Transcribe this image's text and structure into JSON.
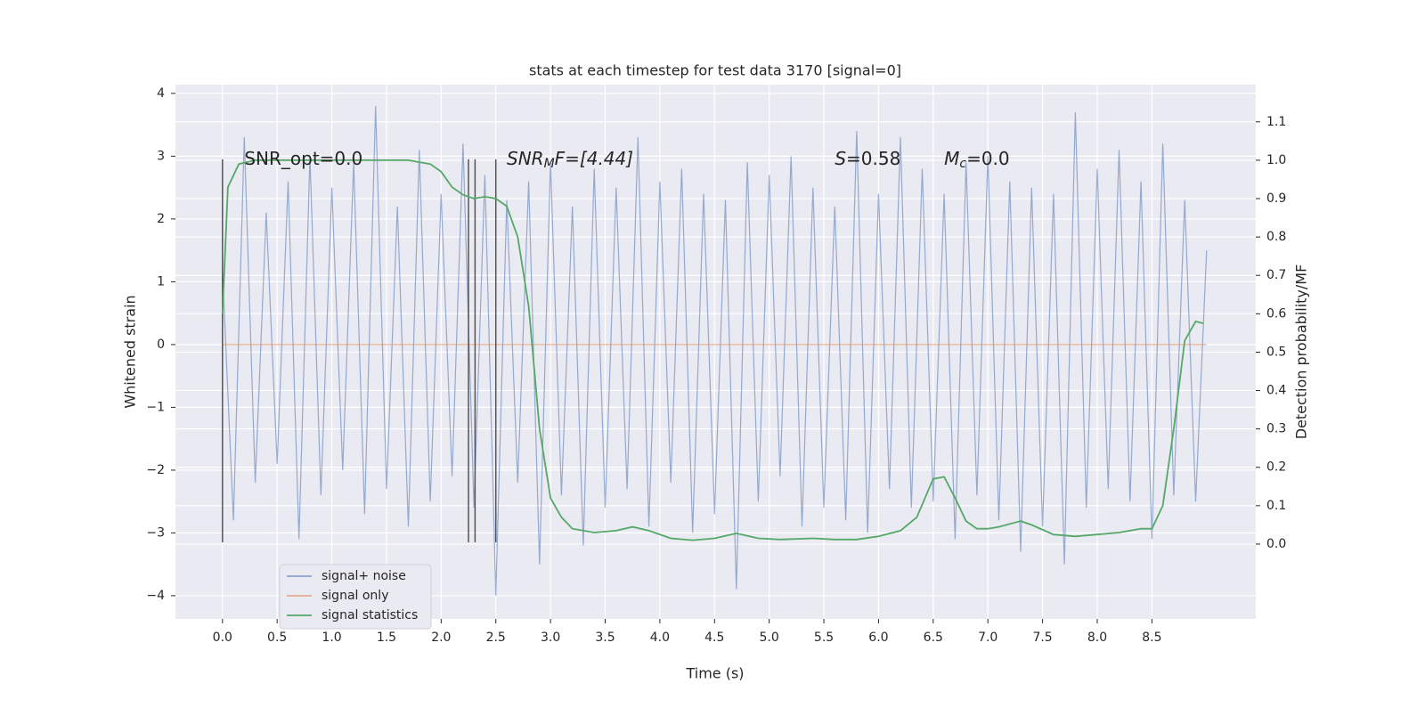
{
  "chart_data": {
    "type": "line",
    "title": "stats at each timestep for test data 3170 [signal=0]",
    "xlabel": "Time (s)",
    "ylabel": "Whitened strain",
    "y2label": "Detection probability/MF",
    "xlim": [
      -0.43,
      9.45
    ],
    "ylim": [
      -4.37,
      4.14
    ],
    "y2lim": [
      -0.195,
      1.197
    ],
    "xticks": [
      {
        "value": 0,
        "label": "0.0"
      },
      0.5,
      {
        "value": 1,
        "label": "1.0"
      },
      1.5,
      {
        "value": 2,
        "label": "2.0"
      },
      2.5,
      {
        "value": 3,
        "label": "3.0"
      },
      3.5,
      {
        "value": 4,
        "label": "4.0"
      },
      4.5,
      {
        "value": 5,
        "label": "5.0"
      },
      5.5,
      {
        "value": 6,
        "label": "6.0"
      },
      6.5,
      {
        "value": 7,
        "label": "7.0"
      },
      7.5,
      {
        "value": 8,
        "label": "8.0"
      },
      8.5
    ],
    "yticks": [
      {
        "value": -4,
        "label": "−4"
      },
      {
        "value": -3,
        "label": "−3"
      },
      {
        "value": -2,
        "label": "−2"
      },
      {
        "value": -1,
        "label": "−1"
      },
      0,
      1,
      2,
      3,
      4
    ],
    "y2ticks": [
      {
        "value": 0,
        "label": "0.0"
      },
      0.1,
      0.2,
      0.3,
      0.4,
      0.5,
      0.6,
      0.7,
      0.8,
      0.9,
      {
        "value": 1,
        "label": "1.0"
      },
      1.1
    ],
    "grid": true,
    "legend": "lower left",
    "series": [
      {
        "name": "signal+ noise",
        "color": "#4c72b0",
        "x": [
          0,
          0.1,
          0.2,
          0.3,
          0.4,
          0.5,
          0.6,
          0.7,
          0.8,
          0.9,
          1,
          1.1,
          1.2,
          1.3,
          1.4,
          1.5,
          1.6,
          1.7,
          1.8,
          1.9,
          2,
          2.1,
          2.2,
          2.3,
          2.4,
          2.5,
          2.6,
          2.7,
          2.8,
          2.9,
          3,
          3.1,
          3.2,
          3.3,
          3.4,
          3.5,
          3.6,
          3.7,
          3.8,
          3.9,
          4,
          4.1,
          4.2,
          4.3,
          4.4,
          4.5,
          4.6,
          4.7,
          4.8,
          4.9,
          5,
          5.1,
          5.2,
          5.3,
          5.4,
          5.5,
          5.6,
          5.7,
          5.8,
          5.9,
          6,
          6.1,
          6.2,
          6.3,
          6.4,
          6.5,
          6.6,
          6.7,
          6.8,
          6.9,
          7,
          7.1,
          7.2,
          7.3,
          7.4,
          7.5,
          7.6,
          7.7,
          7.8,
          7.9,
          8,
          8.1,
          8.2,
          8.3,
          8.4,
          8.5,
          8.6,
          8.7,
          8.8,
          8.9,
          9
        ],
        "values": [
          1.2,
          -2.8,
          3.3,
          -2.2,
          2.1,
          -1.9,
          2.6,
          -3.1,
          3.0,
          -2.4,
          2.5,
          -2.0,
          2.9,
          -2.7,
          3.8,
          -2.3,
          2.2,
          -2.9,
          3.1,
          -2.5,
          2.4,
          -2.1,
          3.2,
          -2.6,
          2.7,
          -4.0,
          2.3,
          -2.2,
          2.6,
          -3.5,
          2.9,
          -2.4,
          2.2,
          -3.2,
          2.8,
          -2.6,
          2.5,
          -2.3,
          3.3,
          -2.9,
          2.6,
          -2.2,
          2.8,
          -3.0,
          2.4,
          -2.7,
          2.3,
          -3.9,
          2.9,
          -2.5,
          2.7,
          -2.1,
          3.0,
          -2.9,
          2.5,
          -2.6,
          2.2,
          -2.8,
          3.4,
          -3.0,
          2.4,
          -2.3,
          3.3,
          -2.6,
          2.8,
          -2.5,
          2.4,
          -3.1,
          2.9,
          -2.4,
          3.0,
          -2.8,
          2.6,
          -3.3,
          2.5,
          -2.9,
          2.4,
          -3.5,
          3.7,
          -2.6,
          2.8,
          -2.3,
          3.1,
          -2.5,
          2.6,
          -3.1,
          3.2,
          -2.4,
          2.3,
          -2.5,
          1.5
        ]
      },
      {
        "name": "signal only",
        "color": "#dd8452",
        "x": [
          0,
          9
        ],
        "values": [
          0,
          0
        ]
      },
      {
        "name": "signal statistics",
        "color": "#55a868",
        "axis": "y2",
        "x": [
          0,
          0.05,
          0.15,
          0.3,
          1.0,
          1.7,
          1.9,
          2.0,
          2.1,
          2.2,
          2.3,
          2.4,
          2.5,
          2.6,
          2.7,
          2.8,
          2.9,
          3.0,
          3.1,
          3.2,
          3.4,
          3.6,
          3.75,
          3.9,
          4.1,
          4.3,
          4.5,
          4.7,
          4.9,
          5.1,
          5.4,
          5.6,
          5.8,
          6.0,
          6.2,
          6.35,
          6.5,
          6.6,
          6.7,
          6.8,
          6.9,
          7.0,
          7.1,
          7.3,
          7.4,
          7.6,
          7.8,
          8.0,
          8.2,
          8.4,
          8.5,
          8.6,
          8.7,
          8.8,
          8.9,
          8.97
        ],
        "values": [
          0.6,
          0.93,
          0.99,
          1.0,
          1.0,
          1.0,
          0.99,
          0.97,
          0.93,
          0.91,
          0.9,
          0.905,
          0.9,
          0.88,
          0.8,
          0.62,
          0.3,
          0.12,
          0.07,
          0.04,
          0.03,
          0.035,
          0.045,
          0.035,
          0.015,
          0.01,
          0.015,
          0.028,
          0.015,
          0.012,
          0.015,
          0.012,
          0.012,
          0.02,
          0.035,
          0.07,
          0.17,
          0.175,
          0.12,
          0.06,
          0.04,
          0.04,
          0.045,
          0.06,
          0.05,
          0.025,
          0.02,
          0.025,
          0.03,
          0.04,
          0.04,
          0.1,
          0.3,
          0.53,
          0.58,
          0.575
        ]
      }
    ],
    "vlines": {
      "color": "#555555",
      "x": [
        0,
        2.25,
        2.31,
        2.5
      ],
      "ymin": [
        -3.15,
        -3.15,
        -3.15,
        -3.15
      ],
      "ymax": [
        2.95,
        2.95,
        2.95,
        2.95
      ]
    },
    "annotations": [
      {
        "main": "SNR_opt=0.0"
      },
      {
        "main": "SNR",
        "sub": "M",
        "rest": "F=[4.44]"
      },
      {
        "main": "S",
        "rest": "=0.58"
      },
      {
        "main": "M",
        "sub": "c",
        "rest": "=0.0"
      }
    ]
  }
}
